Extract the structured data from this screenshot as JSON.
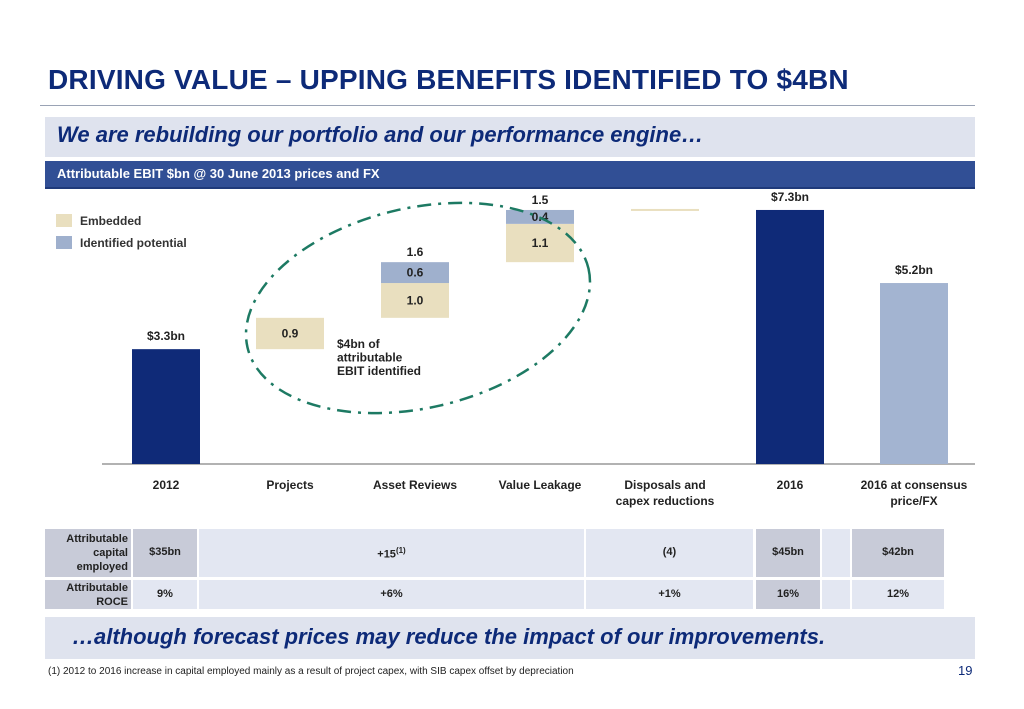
{
  "slide": {
    "title": "DRIVING VALUE – UPPING BENEFITS IDENTIFIED TO $4BN",
    "subtitle": "We are rebuilding our portfolio and our performance engine…",
    "metric_label": "Attributable EBIT $bn @ 30 June 2013 prices and FX",
    "conclusion": "…although forecast prices may reduce the impact of our improvements.",
    "footnote": "(1) 2012 to 2016 increase in capital employed mainly as a result of project capex, with SIB capex offset by depreciation",
    "page_number": "19"
  },
  "colors": {
    "dark_navy": "#0f2a78",
    "light_blue": "#a3b4d1",
    "embedded": "#e9dfbf",
    "identified": "#9fb0cd",
    "ellipse": "#1d7a63",
    "title_blue": "#0d2a78"
  },
  "chart_data": {
    "type": "bar",
    "subtype": "waterfall",
    "categories": [
      "2012",
      "Projects",
      "Asset Reviews",
      "Value Leakage",
      "Disposals and capex reductions",
      "2016",
      "2016 at consensus price/FX"
    ],
    "category_labels": [
      [
        "2012"
      ],
      [
        "Projects"
      ],
      [
        "Asset Reviews"
      ],
      [
        "Value Leakage"
      ],
      [
        "Disposals and",
        "capex reductions"
      ],
      [
        "2016"
      ],
      [
        "2016 at consensus",
        "price/FX"
      ]
    ],
    "legend": [
      "Embedded",
      "Identified potential"
    ],
    "ylim": [
      0,
      8
    ],
    "bars": [
      {
        "category": "2012",
        "kind": "total",
        "value": 3.3,
        "color": "dark_navy",
        "label": "$3.3bn"
      },
      {
        "category": "Projects",
        "kind": "increment",
        "base": 3.3,
        "segments": [
          {
            "series": "Embedded",
            "value": 0.9,
            "label": "0.9"
          }
        ]
      },
      {
        "category": "Asset Reviews",
        "kind": "increment",
        "base": 4.2,
        "total_label": "1.6",
        "segments": [
          {
            "series": "Embedded",
            "value": 1.0,
            "label": "1.0"
          },
          {
            "series": "Identified potential",
            "value": 0.6,
            "label": "0.6"
          }
        ]
      },
      {
        "category": "Value Leakage",
        "kind": "increment",
        "base": 5.8,
        "total_label": "1.5",
        "segments": [
          {
            "series": "Embedded",
            "value": 1.1,
            "label": "1.1"
          },
          {
            "series": "Identified potential",
            "value": 0.4,
            "label": "0.4"
          }
        ]
      },
      {
        "category": "Disposals and capex reductions",
        "kind": "increment",
        "base": 7.3,
        "segments": [
          {
            "series": "Embedded",
            "value": 0.0,
            "label": ""
          }
        ]
      },
      {
        "category": "2016",
        "kind": "total",
        "value": 7.3,
        "color": "dark_navy",
        "label": "$7.3bn"
      },
      {
        "category": "2016 at consensus price/FX",
        "kind": "total",
        "value": 5.2,
        "color": "light_blue",
        "label": "$5.2bn"
      }
    ],
    "annotation": [
      "$4bn of",
      "attributable",
      "EBIT identified"
    ]
  },
  "table": {
    "rows": [
      {
        "label": [
          "Attributable",
          "capital",
          "employed"
        ],
        "c2012": "$35bn",
        "mid": "+15",
        "mid_sup": "(1)",
        "disposals": "(4)",
        "c2016": "$45bn",
        "consensus": "$42bn"
      },
      {
        "label": [
          "Attributable",
          "ROCE"
        ],
        "c2012": "9%",
        "mid": "+6%",
        "mid_sup": "",
        "disposals": "+1%",
        "c2016": "16%",
        "consensus": "12%"
      }
    ]
  }
}
